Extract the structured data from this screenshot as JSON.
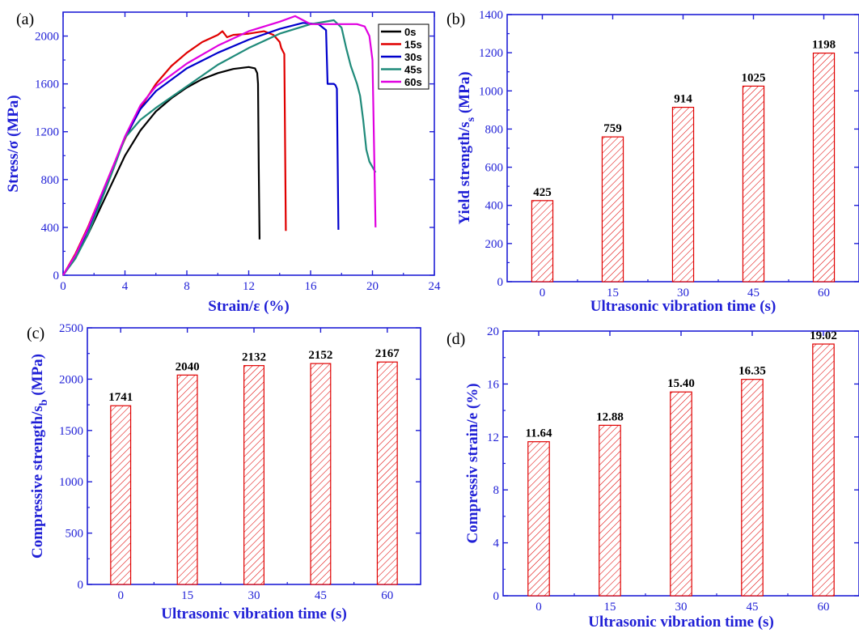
{
  "chart_data": [
    {
      "type": "line",
      "panel": "(a)",
      "xlabel": "Strain/ε (%)",
      "ylabel": "Stress/σ (MPa)",
      "xlim": [
        0,
        24
      ],
      "ylim": [
        0,
        2200
      ],
      "xticks": [
        "0",
        "4",
        "8",
        "12",
        "16",
        "20",
        "24"
      ],
      "yticks": [
        "0",
        "400",
        "800",
        "1200",
        "1600",
        "2000"
      ],
      "legend": "top-right",
      "series": [
        {
          "name": "0s",
          "color": "#000000",
          "x": [
            0,
            0.8,
            1.6,
            2.4,
            3.2,
            4,
            5,
            6,
            7,
            8,
            9,
            10,
            11,
            12,
            12.4,
            12.55,
            12.6,
            12.65,
            12.7
          ],
          "y": [
            0,
            150,
            340,
            560,
            780,
            1000,
            1210,
            1370,
            1480,
            1570,
            1640,
            1690,
            1725,
            1741,
            1730,
            1690,
            1600,
            900,
            300
          ]
        },
        {
          "name": "15s",
          "color": "#e00000",
          "x": [
            0,
            0.8,
            1.6,
            2.4,
            3.2,
            4,
            5,
            6,
            7,
            8,
            9,
            10,
            10.3,
            10.6,
            11,
            12,
            13,
            13.6,
            14,
            14.1,
            14.3,
            14.4
          ],
          "y": [
            0,
            180,
            400,
            650,
            900,
            1140,
            1400,
            1600,
            1750,
            1860,
            1950,
            2010,
            2040,
            1990,
            2010,
            2020,
            2040,
            2010,
            1950,
            1900,
            1850,
            370
          ]
        },
        {
          "name": "30s",
          "color": "#0000cc",
          "x": [
            0,
            0.8,
            1.6,
            2.4,
            3.2,
            4,
            5,
            6,
            8,
            10,
            12,
            14,
            15.5,
            16.5,
            17.0,
            17.1,
            17.2,
            17.5,
            17.6,
            17.7,
            17.8
          ],
          "y": [
            0,
            160,
            380,
            630,
            890,
            1150,
            1390,
            1540,
            1730,
            1860,
            1970,
            2060,
            2110,
            2100,
            2050,
            1600,
            1600,
            1600,
            1590,
            1560,
            380
          ]
        },
        {
          "name": "45s",
          "color": "#1f8a7a",
          "x": [
            0,
            0.8,
            1.6,
            2.4,
            3.2,
            4,
            5,
            6,
            8,
            10,
            12,
            14,
            16,
            17.5,
            18,
            18.3,
            18.6,
            19,
            19.2,
            19.4,
            19.6,
            19.8,
            20.2
          ],
          "y": [
            0,
            140,
            340,
            600,
            870,
            1150,
            1300,
            1400,
            1580,
            1760,
            1900,
            2020,
            2100,
            2132,
            2070,
            1900,
            1750,
            1600,
            1500,
            1300,
            1050,
            950,
            860
          ]
        },
        {
          "name": "60s",
          "color": "#e000e0",
          "x": [
            0,
            0.8,
            1.6,
            2.4,
            3.2,
            4,
            5,
            6,
            8,
            10,
            12,
            14,
            15,
            16,
            18,
            19,
            19.5,
            19.8,
            20.0,
            20.1,
            20.2
          ],
          "y": [
            0,
            170,
            390,
            650,
            900,
            1160,
            1420,
            1580,
            1770,
            1920,
            2040,
            2120,
            2167,
            2100,
            2100,
            2100,
            2080,
            2000,
            1800,
            1100,
            400
          ]
        }
      ]
    },
    {
      "type": "bar",
      "panel": "(b)",
      "xlabel": "Ultrasonic vibration time (s)",
      "ylabel": "Yield strength/s",
      "ylabel_sub": "s",
      "ylabel_unit": " (MPa)",
      "categories": [
        "0",
        "15",
        "30",
        "45",
        "60"
      ],
      "values": [
        425,
        759,
        914,
        1025,
        1198
      ],
      "value_labels": [
        "425",
        "759",
        "914",
        "1025",
        "1198"
      ],
      "ylim": [
        0,
        1400
      ],
      "yticks": [
        "0",
        "200",
        "400",
        "600",
        "800",
        "1000",
        "1200",
        "1400"
      ],
      "bar_color": "#e00000"
    },
    {
      "type": "bar",
      "panel": "(c)",
      "xlabel": "Ultrasonic vibration time (s)",
      "ylabel": "Compressive strength/s",
      "ylabel_sub": "b",
      "ylabel_unit": " (MPa)",
      "categories": [
        "0",
        "15",
        "30",
        "45",
        "60"
      ],
      "values": [
        1741,
        2040,
        2132,
        2152,
        2167
      ],
      "value_labels": [
        "1741",
        "2040",
        "2132",
        "2152",
        "2167"
      ],
      "ylim": [
        0,
        2500
      ],
      "yticks": [
        "0",
        "500",
        "1000",
        "1500",
        "2000",
        "2500"
      ],
      "bar_color": "#e00000"
    },
    {
      "type": "bar",
      "panel": "(d)",
      "xlabel": "Ultrasonic vibration time (s)",
      "ylabel": "Compressiv strain/e (%)",
      "categories": [
        "0",
        "15",
        "30",
        "45",
        "60"
      ],
      "values": [
        11.64,
        12.88,
        15.4,
        16.35,
        19.02
      ],
      "value_labels": [
        "11.64",
        "12.88",
        "15.40",
        "16.35",
        "19.02"
      ],
      "ylim": [
        0,
        20
      ],
      "yticks": [
        "0",
        "4",
        "8",
        "12",
        "16",
        "20"
      ],
      "bar_color": "#e00000"
    }
  ]
}
